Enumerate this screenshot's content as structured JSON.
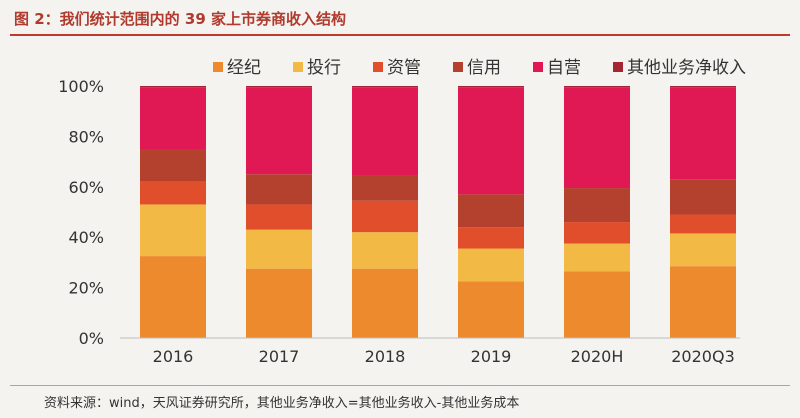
{
  "title": "图 2：我们统计范围内的 39 家上市券商收入结构",
  "source": "资料来源：wind，天风证券研究所，其他业务净收入=其他业务收入-其他业务成本",
  "chart_data": {
    "type": "bar",
    "stacked": true,
    "categories": [
      "2016",
      "2017",
      "2018",
      "2019",
      "2020H",
      "2020Q3"
    ],
    "series": [
      {
        "name": "经纪",
        "color": "#ee8a2e",
        "values": [
          32.5,
          27.5,
          27.5,
          22.5,
          26.5,
          28.5
        ]
      },
      {
        "name": "投行",
        "color": "#f2b944",
        "values": [
          20.5,
          15.5,
          14.5,
          13.0,
          11.0,
          13.0
        ]
      },
      {
        "name": "资管",
        "color": "#e04e2c",
        "values": [
          9.0,
          10.0,
          12.5,
          8.5,
          8.5,
          7.5
        ]
      },
      {
        "name": "信用",
        "color": "#b3412e",
        "values": [
          13.0,
          12.0,
          10.0,
          13.0,
          13.5,
          14.0
        ]
      },
      {
        "name": "自营",
        "color": "#e01854",
        "values": [
          24.5,
          34.5,
          35.0,
          42.5,
          40.0,
          36.5
        ]
      },
      {
        "name": "其他业务净收入",
        "color": "#a42632",
        "values": [
          0.5,
          0.5,
          0.5,
          0.5,
          0.5,
          0.5
        ]
      }
    ],
    "ylim": [
      0,
      100
    ],
    "yticks": [
      "0%",
      "20%",
      "40%",
      "60%",
      "80%",
      "100%"
    ],
    "grid": false,
    "legend": "top"
  }
}
